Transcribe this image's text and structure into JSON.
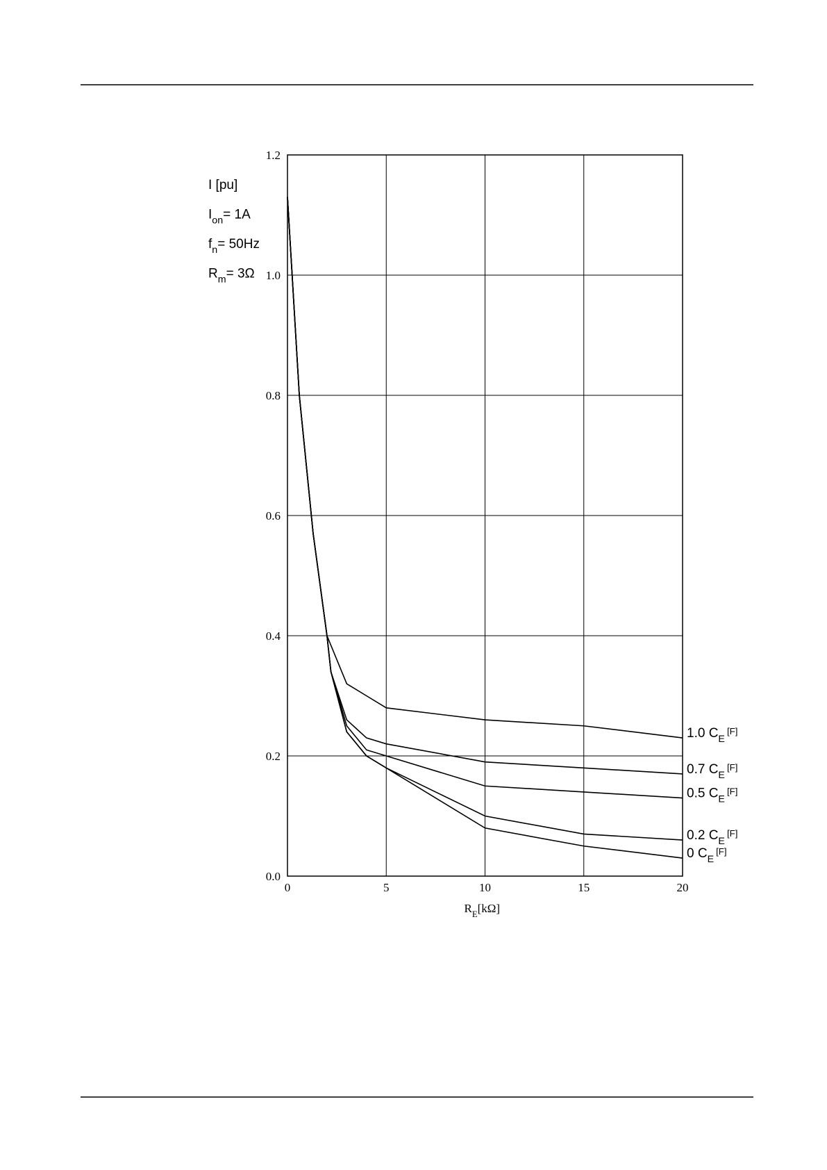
{
  "chart_data": {
    "type": "line",
    "x": [
      0,
      0.6,
      1.3,
      2,
      2.2,
      3,
      4,
      5,
      10,
      15,
      20
    ],
    "series": [
      {
        "name": "1.0 C",
        "name_sub": "E",
        "unit": "[F]",
        "color": "#000000",
        "values": [
          1.13,
          0.8,
          0.57,
          0.4,
          0.384,
          0.32,
          0.3,
          0.28,
          0.26,
          0.25,
          0.23
        ]
      },
      {
        "name": "0.7 C",
        "name_sub": "E",
        "unit": "[F]",
        "color": "#000000",
        "values": [
          1.13,
          0.8,
          0.57,
          0.4,
          0.34,
          0.26,
          0.23,
          0.22,
          0.19,
          0.18,
          0.17
        ]
      },
      {
        "name": "0.5 C",
        "name_sub": "E",
        "unit": "[F]",
        "color": "#000000",
        "values": [
          1.13,
          0.8,
          0.57,
          0.4,
          0.34,
          0.25,
          0.21,
          0.2,
          0.15,
          0.14,
          0.13
        ]
      },
      {
        "name": "0.2 C",
        "name_sub": "E",
        "unit": "[F]",
        "color": "#000000",
        "values": [
          1.13,
          0.8,
          0.57,
          0.4,
          0.34,
          0.24,
          0.2,
          0.18,
          0.1,
          0.07,
          0.06
        ]
      },
      {
        "name": "0 C",
        "name_sub": "E",
        "unit": "[F]",
        "color": "#000000",
        "values": [
          1.13,
          0.8,
          0.57,
          0.4,
          0.34,
          0.24,
          0.2,
          0.18,
          0.08,
          0.05,
          0.03
        ]
      }
    ],
    "xlim": [
      0,
      20
    ],
    "xticks": [
      0,
      5,
      10,
      15,
      20
    ],
    "ylim": [
      0,
      1.2
    ],
    "yticks": [
      {
        "value": 0,
        "label": "0.0"
      },
      0.2,
      0.4,
      0.6,
      0.8,
      {
        "value": 1,
        "label": "1.0"
      },
      1.2
    ],
    "grid": true,
    "x_label": {
      "main": "R",
      "sub": "E",
      "rest": "[kΩ]"
    },
    "annotations": [
      {
        "main": "I [pu]"
      },
      {
        "main": "I",
        "sub": "on",
        "rest": "= 1A"
      },
      {
        "main": "f",
        "sub": "n",
        "rest": "= 50Hz"
      },
      {
        "main": "R",
        "sub": "m",
        "rest": "= 3Ω"
      }
    ]
  }
}
